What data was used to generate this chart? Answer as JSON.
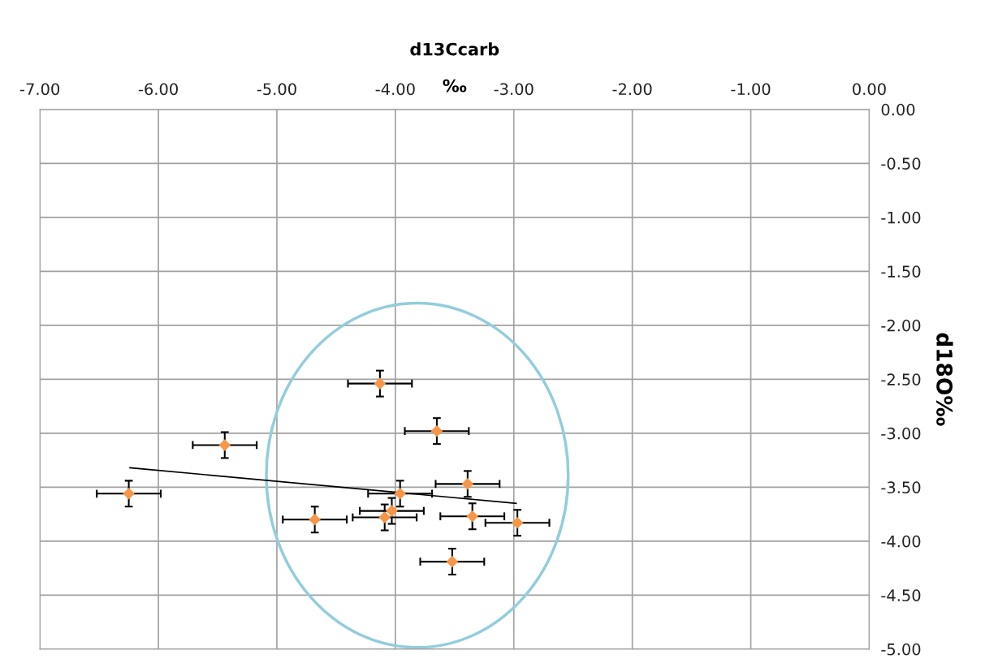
{
  "chart_data": {
    "type": "scatter",
    "title": "d13Ccarb",
    "xlabel": "‰",
    "ylabel": "d18O‰",
    "xlim": [
      -7,
      0
    ],
    "xticks": [
      {
        "value": -7,
        "label": "-7.00"
      },
      {
        "value": -6,
        "label": "-6.00"
      },
      {
        "value": -5,
        "label": "-5.00"
      },
      {
        "value": -4,
        "label": "-4.00"
      },
      {
        "value": -3,
        "label": "-3.00"
      },
      {
        "value": -2,
        "label": "-2.00"
      },
      {
        "value": -1,
        "label": "-1.00"
      },
      {
        "value": 0,
        "label": "0.00"
      }
    ],
    "ylim": [
      -5,
      0
    ],
    "yticks": [
      {
        "value": 0,
        "label": "0.00"
      },
      {
        "value": -0.5,
        "label": "-0.50"
      },
      {
        "value": -1,
        "label": "-1.00"
      },
      {
        "value": -1.5,
        "label": "-1.50"
      },
      {
        "value": -2,
        "label": "-2.00"
      },
      {
        "value": -2.5,
        "label": "-2.50"
      },
      {
        "value": -3,
        "label": "-3.00"
      },
      {
        "value": -3.5,
        "label": "-3.50"
      },
      {
        "value": -4,
        "label": "-4.00"
      },
      {
        "value": -4.5,
        "label": "-4.50"
      },
      {
        "value": -5,
        "label": "-5.00"
      }
    ],
    "grid": true,
    "legend": false,
    "marker": "diamond",
    "series": [
      {
        "color": "#f79646",
        "x": [
          -6.25,
          -5.44,
          -4.13,
          -3.65,
          -3.39,
          -3.96,
          -4.03,
          -4.09,
          -3.35,
          -2.97,
          -3.52,
          -4.68
        ],
        "values": [
          -3.56,
          -3.11,
          -2.54,
          -2.98,
          -3.47,
          -3.56,
          -3.72,
          -3.78,
          -3.77,
          -3.83,
          -4.19,
          -3.8
        ],
        "errors": [
          0.12,
          0.12,
          0.12,
          0.12,
          0.12,
          0.12,
          0.12,
          0.12,
          0.12,
          0.12,
          0.12,
          0.12
        ],
        "xerrors": [
          0.27,
          0.27,
          0.27,
          0.27,
          0.27,
          0.27,
          0.27,
          0.27,
          0.27,
          0.27,
          0.27,
          0.27
        ]
      },
      {
        "type": "line",
        "color": "#000000",
        "x": [
          -6.24,
          -2.98
        ],
        "values": [
          -3.32,
          -3.65
        ],
        "marker": "none",
        "line_style": "solid"
      }
    ]
  }
}
